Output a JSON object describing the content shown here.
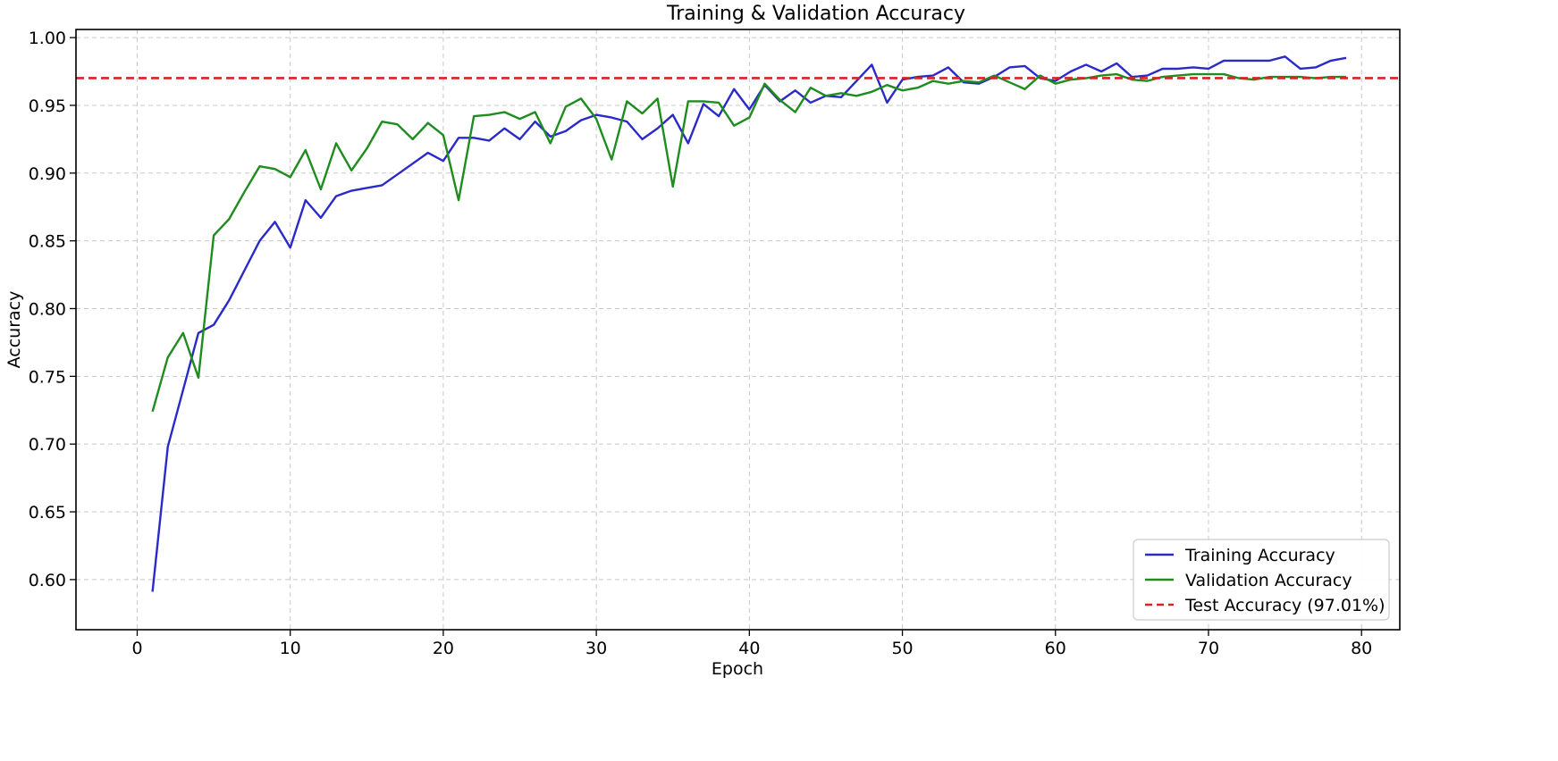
{
  "chart_data": {
    "type": "line",
    "title": "Training & Validation Accuracy",
    "xlabel": "Epoch",
    "ylabel": "Accuracy",
    "xlim": [
      -4,
      82.5
    ],
    "ylim": [
      0.563,
      1.006
    ],
    "x_ticks": [
      0,
      10,
      20,
      30,
      40,
      50,
      60,
      70,
      80
    ],
    "y_ticks": [
      0.6,
      0.65,
      0.7,
      0.75,
      0.8,
      0.85,
      0.9,
      0.95,
      1.0
    ],
    "x_tick_labels": [
      "0",
      "10",
      "20",
      "30",
      "40",
      "50",
      "60",
      "70",
      "80"
    ],
    "y_tick_labels": [
      "0.60",
      "0.65",
      "0.70",
      "0.75",
      "0.80",
      "0.85",
      "0.90",
      "0.95",
      "1.00"
    ],
    "grid": true,
    "legend_position": "bottom-right",
    "x": [
      1,
      2,
      3,
      4,
      5,
      6,
      7,
      8,
      9,
      10,
      11,
      12,
      13,
      14,
      15,
      16,
      17,
      18,
      19,
      20,
      21,
      22,
      23,
      24,
      25,
      26,
      27,
      28,
      29,
      30,
      31,
      32,
      33,
      34,
      35,
      36,
      37,
      38,
      39,
      40,
      41,
      42,
      43,
      44,
      45,
      46,
      47,
      48,
      49,
      50,
      51,
      52,
      53,
      54,
      55,
      56,
      57,
      58,
      59,
      60,
      61,
      62,
      63,
      64,
      65,
      66,
      67,
      68,
      69,
      70,
      71,
      72,
      73,
      74,
      75,
      76,
      77,
      78,
      79
    ],
    "series": [
      {
        "name": "Training Accuracy",
        "color": "#2a2ac8",
        "style": "solid",
        "values": [
          0.591,
          0.698,
          0.74,
          0.782,
          0.788,
          0.806,
          0.828,
          0.85,
          0.864,
          0.845,
          0.88,
          0.867,
          0.883,
          0.887,
          0.889,
          0.891,
          0.899,
          0.907,
          0.915,
          0.909,
          0.926,
          0.926,
          0.924,
          0.933,
          0.925,
          0.938,
          0.927,
          0.931,
          0.939,
          0.943,
          0.941,
          0.938,
          0.925,
          0.933,
          0.943,
          0.922,
          0.951,
          0.942,
          0.962,
          0.947,
          0.965,
          0.953,
          0.961,
          0.952,
          0.957,
          0.956,
          0.968,
          0.98,
          0.952,
          0.969,
          0.971,
          0.972,
          0.978,
          0.967,
          0.966,
          0.971,
          0.978,
          0.979,
          0.97,
          0.968,
          0.975,
          0.98,
          0.975,
          0.981,
          0.971,
          0.972,
          0.977,
          0.977,
          0.978,
          0.977,
          0.983,
          0.983,
          0.983,
          0.983,
          0.986,
          0.977,
          0.978,
          0.983,
          0.985
        ]
      },
      {
        "name": "Validation Accuracy",
        "color": "#1e8c1e",
        "style": "solid",
        "values": [
          0.724,
          0.764,
          0.782,
          0.749,
          0.854,
          0.866,
          0.886,
          0.905,
          0.903,
          0.897,
          0.917,
          0.888,
          0.922,
          0.902,
          0.918,
          0.938,
          0.936,
          0.925,
          0.937,
          0.928,
          0.88,
          0.942,
          0.943,
          0.945,
          0.94,
          0.945,
          0.922,
          0.949,
          0.955,
          0.94,
          0.91,
          0.953,
          0.944,
          0.955,
          0.89,
          0.953,
          0.953,
          0.952,
          0.935,
          0.941,
          0.966,
          0.954,
          0.945,
          0.963,
          0.957,
          0.959,
          0.957,
          0.96,
          0.965,
          0.961,
          0.963,
          0.968,
          0.966,
          0.968,
          0.967,
          0.972,
          0.967,
          0.962,
          0.972,
          0.966,
          0.969,
          0.97,
          0.972,
          0.973,
          0.969,
          0.968,
          0.971,
          0.972,
          0.973,
          0.973,
          0.973,
          0.97,
          0.969,
          0.971,
          0.971,
          0.971,
          0.97,
          0.971,
          0.971
        ]
      },
      {
        "name": "Test Accuracy (97.01%)",
        "color": "#dd2020",
        "style": "dashed",
        "constant": 0.9701
      }
    ]
  }
}
